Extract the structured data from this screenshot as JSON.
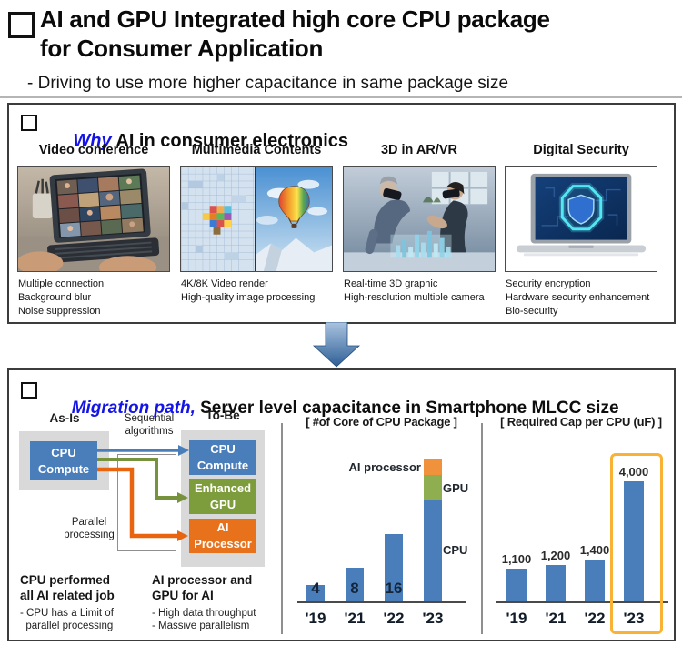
{
  "page": {
    "title_line1": "AI and GPU Integrated high core CPU package",
    "title_line2": "for Consumer Application",
    "subtitle": "- Driving to use more higher capacitance in same package size",
    "colors": {
      "accent_text": "#1414e6"
    }
  },
  "why_section": {
    "heading_accent": "Why",
    "heading_rest": " AI in consumer electronics",
    "columns": [
      {
        "title": "Video conference",
        "captions": [
          "Multiple connection",
          "Background blur",
          "Noise suppression"
        ]
      },
      {
        "title": "Multimedia Contents",
        "captions": [
          "4K/8K Video render",
          "High-quality image processing"
        ]
      },
      {
        "title": "3D in AR/VR",
        "captions": [
          "Real-time 3D graphic",
          "High-resolution multiple camera"
        ]
      },
      {
        "title": "Digital Security",
        "captions": [
          "Security encryption",
          "Hardware security enhancement",
          "Bio-security"
        ]
      }
    ]
  },
  "migration_section": {
    "heading_accent": "Migration path,",
    "heading_rest": " Server level capacitance in Smartphone MLCC size",
    "diagram": {
      "as_is_label": "As-Is",
      "to_be_label": "To-Be",
      "sequential_label": "Sequential algorithms",
      "parallel_label": "Parallel processing",
      "as_is_box": {
        "label_line1": "CPU",
        "label_line2": "Compute",
        "color": "#4a7ebb"
      },
      "to_be_boxes": [
        {
          "label_line1": "CPU",
          "label_line2": "Compute",
          "color": "#4a7ebb"
        },
        {
          "label_line1": "Enhanced",
          "label_line2": "GPU",
          "color": "#7d9c3b"
        },
        {
          "label_line1": "AI",
          "label_line2": "Processor",
          "color": "#e8721c"
        }
      ],
      "left_note": {
        "title_line1": "CPU performed",
        "title_line2": "all AI related job",
        "bullet_line1": "- CPU has a Limit of",
        "bullet_line2": "  parallel processing"
      },
      "right_note": {
        "title_line1": "AI processor and",
        "title_line2": "GPU for AI",
        "bullet_line1": "- High data throughput",
        "bullet_line2": "- Massive parallelism"
      }
    }
  },
  "chart_data": [
    {
      "type": "bar",
      "stacked": true,
      "title": "[ #of Core of CPU Package ]",
      "categories": [
        "'19",
        "'21",
        "'22",
        "'23"
      ],
      "series": [
        {
          "name": "CPU",
          "color": "#4a7ebb",
          "values": [
            4,
            8,
            16,
            24
          ]
        },
        {
          "name": "GPU",
          "color": "#8fae4f",
          "values": [
            0,
            0,
            0,
            6
          ]
        },
        {
          "name": "AI processor",
          "color": "#f0923c",
          "values": [
            0,
            0,
            0,
            4
          ]
        }
      ],
      "bar_value_labels": [
        "4",
        "8",
        "16",
        ""
      ],
      "xlabel": "",
      "ylabel": "",
      "ylim": [
        0,
        36
      ],
      "grid": false,
      "legend_position": "beside-bar"
    },
    {
      "type": "bar",
      "title": "[ Required Cap per CPU (uF) ]",
      "categories": [
        "'19",
        "'21",
        "'22",
        "'23"
      ],
      "values": [
        1100,
        1200,
        1400,
        4000
      ],
      "value_labels": [
        "1,100",
        "1,200",
        "1,400",
        "4,000"
      ],
      "bar_color": "#4a7ebb",
      "highlight_category": "'23",
      "highlight_color": "#f9b233",
      "xlabel": "",
      "ylabel": "",
      "ylim": [
        0,
        4400
      ],
      "grid": false
    }
  ]
}
